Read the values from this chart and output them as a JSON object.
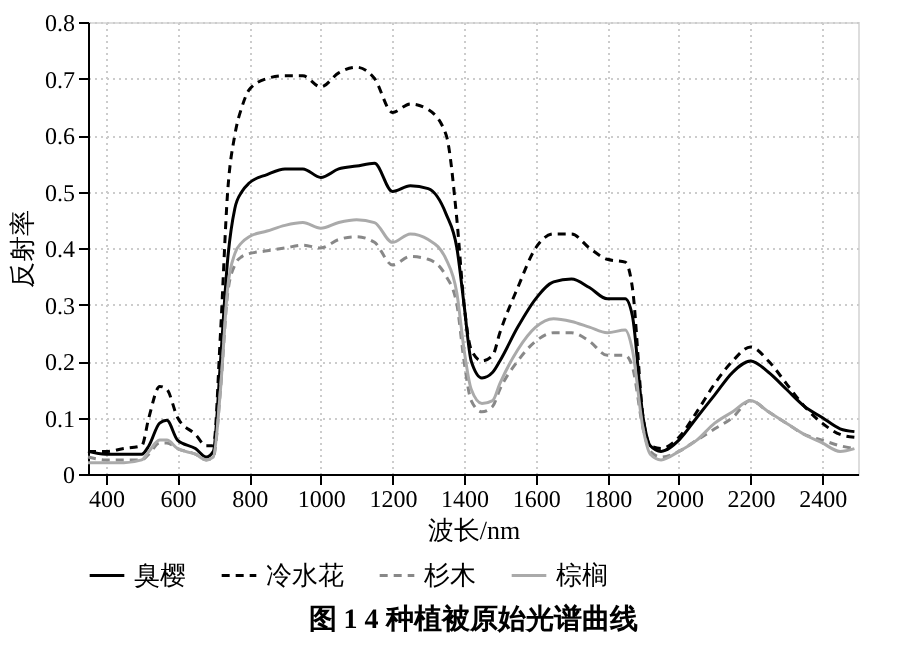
{
  "chart_data": {
    "type": "line",
    "xlabel": "波长/nm",
    "ylabel": "反射率",
    "annotations": [
      "图 1   4 种植被原始光谱曲线"
    ],
    "x": [
      350,
      400,
      450,
      500,
      520,
      550,
      570,
      600,
      650,
      680,
      700,
      720,
      740,
      760,
      780,
      800,
      850,
      900,
      950,
      1000,
      1050,
      1100,
      1150,
      1200,
      1250,
      1300,
      1350,
      1380,
      1400,
      1420,
      1450,
      1480,
      1500,
      1550,
      1600,
      1650,
      1700,
      1750,
      1800,
      1850,
      1870,
      1900,
      1920,
      1950,
      2000,
      2050,
      2100,
      2150,
      2200,
      2250,
      2300,
      2350,
      2400,
      2450,
      2490
    ],
    "series": [
      {
        "name": "臭樱",
        "color": "#000000",
        "line_style": "solid",
        "values": [
          0.04,
          0.035,
          0.035,
          0.035,
          0.05,
          0.09,
          0.095,
          0.06,
          0.045,
          0.03,
          0.04,
          0.2,
          0.38,
          0.47,
          0.5,
          0.515,
          0.53,
          0.54,
          0.54,
          0.525,
          0.54,
          0.545,
          0.55,
          0.5,
          0.51,
          0.505,
          0.46,
          0.4,
          0.3,
          0.2,
          0.17,
          0.18,
          0.2,
          0.26,
          0.31,
          0.34,
          0.345,
          0.33,
          0.31,
          0.31,
          0.28,
          0.1,
          0.05,
          0.04,
          0.06,
          0.1,
          0.14,
          0.18,
          0.2,
          0.18,
          0.15,
          0.12,
          0.1,
          0.08,
          0.075
        ]
      },
      {
        "name": "冷水花",
        "color": "#000000",
        "line_style": "dashed",
        "values": [
          0.04,
          0.04,
          0.045,
          0.05,
          0.1,
          0.155,
          0.15,
          0.1,
          0.07,
          0.05,
          0.05,
          0.25,
          0.5,
          0.6,
          0.65,
          0.68,
          0.7,
          0.705,
          0.705,
          0.685,
          0.71,
          0.72,
          0.7,
          0.64,
          0.655,
          0.645,
          0.6,
          0.45,
          0.3,
          0.22,
          0.2,
          0.21,
          0.25,
          0.33,
          0.4,
          0.425,
          0.425,
          0.4,
          0.38,
          0.375,
          0.33,
          0.1,
          0.05,
          0.045,
          0.065,
          0.11,
          0.16,
          0.2,
          0.225,
          0.2,
          0.16,
          0.12,
          0.09,
          0.07,
          0.065
        ]
      },
      {
        "name": "杉木",
        "color": "#888888",
        "line_style": "dashed",
        "values": [
          0.03,
          0.025,
          0.025,
          0.025,
          0.035,
          0.055,
          0.055,
          0.045,
          0.035,
          0.025,
          0.03,
          0.15,
          0.32,
          0.37,
          0.385,
          0.39,
          0.395,
          0.4,
          0.405,
          0.4,
          0.415,
          0.42,
          0.41,
          0.37,
          0.385,
          0.38,
          0.35,
          0.3,
          0.2,
          0.13,
          0.11,
          0.12,
          0.15,
          0.2,
          0.235,
          0.25,
          0.25,
          0.235,
          0.21,
          0.21,
          0.19,
          0.08,
          0.04,
          0.03,
          0.04,
          0.06,
          0.08,
          0.1,
          0.13,
          0.11,
          0.09,
          0.07,
          0.06,
          0.05,
          0.045
        ]
      },
      {
        "name": "棕榈",
        "color": "#aaaaaa",
        "line_style": "solid",
        "values": [
          0.02,
          0.02,
          0.02,
          0.025,
          0.04,
          0.06,
          0.06,
          0.045,
          0.035,
          0.025,
          0.03,
          0.15,
          0.33,
          0.39,
          0.41,
          0.42,
          0.43,
          0.44,
          0.445,
          0.435,
          0.445,
          0.45,
          0.445,
          0.41,
          0.425,
          0.415,
          0.38,
          0.32,
          0.22,
          0.15,
          0.125,
          0.13,
          0.16,
          0.22,
          0.26,
          0.275,
          0.27,
          0.26,
          0.25,
          0.255,
          0.22,
          0.08,
          0.035,
          0.025,
          0.04,
          0.06,
          0.09,
          0.11,
          0.13,
          0.11,
          0.09,
          0.07,
          0.055,
          0.04,
          0.045
        ]
      }
    ],
    "xlim": [
      350,
      2500
    ],
    "xticks": [
      400,
      600,
      800,
      1000,
      1200,
      1400,
      1600,
      1800,
      2000,
      2200,
      2400
    ],
    "ylim": [
      0,
      0.8
    ],
    "yticks": [
      0,
      0.1,
      0.2,
      0.3,
      0.4,
      0.5,
      0.6,
      0.7,
      0.8
    ],
    "grid": true,
    "legend": "bottom"
  }
}
